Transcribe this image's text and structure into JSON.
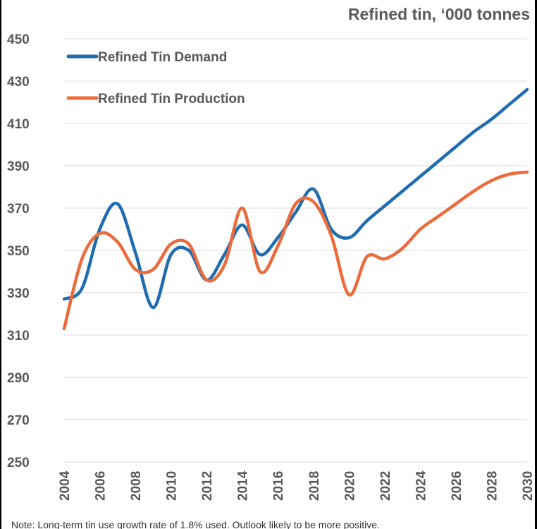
{
  "chart_data": {
    "type": "line",
    "title": "Refined tin, ‘000 tonnes",
    "note": "Note: Long-term tin use growth rate of 1.8% used. Outlook likely to be more positive.",
    "ylim": [
      250,
      450
    ],
    "yticks": [
      250,
      270,
      290,
      310,
      330,
      350,
      370,
      390,
      410,
      430,
      450
    ],
    "xlim": [
      2004,
      2030
    ],
    "xticks": [
      "2004",
      "2006",
      "2008",
      "2010",
      "2012",
      "2014",
      "2016",
      "2018",
      "2020",
      "2022",
      "2024",
      "2026",
      "2028",
      "2030"
    ],
    "grid": "horizontal",
    "legend_position": "top-left",
    "colors": {
      "demand": "#1f6db0",
      "production": "#ec6b3c"
    },
    "series": [
      {
        "name": "Refined Tin Demand",
        "color": "#1f6db0",
        "x": [
          2004,
          2005,
          2006,
          2007,
          2008,
          2009,
          2010,
          2011,
          2012,
          2013,
          2014,
          2015,
          2016,
          2017,
          2018,
          2019,
          2020,
          2021,
          2022,
          2023,
          2024,
          2025,
          2026,
          2027,
          2028,
          2029,
          2030
        ],
        "values": [
          327,
          332,
          360,
          372,
          349,
          323,
          348,
          350,
          336,
          348,
          362,
          348,
          356,
          368,
          379,
          360,
          356,
          364,
          371,
          378,
          385,
          392,
          399,
          406,
          412,
          419,
          426
        ]
      },
      {
        "name": "Refined Tin Production",
        "color": "#ec6b3c",
        "x": [
          2004,
          2005,
          2006,
          2007,
          2008,
          2009,
          2010,
          2011,
          2012,
          2013,
          2014,
          2015,
          2016,
          2017,
          2018,
          2019,
          2020,
          2021,
          2022,
          2023,
          2024,
          2025,
          2026,
          2027,
          2028,
          2029,
          2030
        ],
        "values": [
          313,
          346,
          358,
          354,
          341,
          341,
          353,
          353,
          336,
          343,
          370,
          340,
          352,
          372,
          373,
          357,
          329,
          347,
          346,
          351,
          360,
          366,
          372,
          378,
          383,
          386,
          387
        ]
      }
    ]
  }
}
